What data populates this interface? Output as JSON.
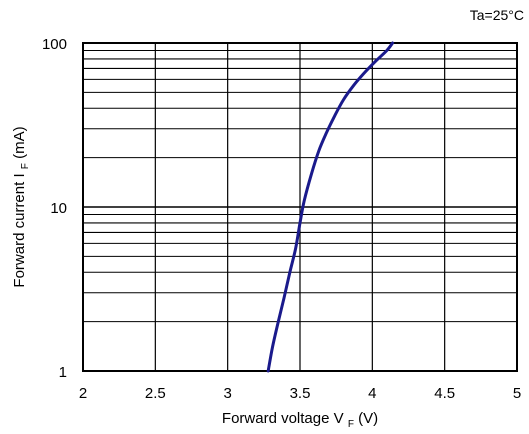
{
  "chart_data": {
    "type": "line",
    "title": "",
    "annotation": "Ta=25°C",
    "xlabel": {
      "prefix": "Forward voltage V",
      "subscript": "F",
      "suffix": " (V)"
    },
    "ylabel": {
      "prefix": "Forward current  I",
      "subscript": "F",
      "suffix": "  (mA)"
    },
    "xlim": [
      2,
      5
    ],
    "ylim": [
      1,
      100
    ],
    "yscale": "log",
    "grid": true,
    "x_ticks": [
      2,
      2.5,
      3,
      3.5,
      4,
      4.5,
      5
    ],
    "x_tick_labels": [
      "2",
      "2.5",
      "3",
      "3.5",
      "4",
      "4.5",
      "5"
    ],
    "y_ticks": [
      1,
      10,
      100
    ],
    "y_tick_labels": [
      "1",
      "10",
      "100"
    ],
    "series": [
      {
        "color": "#1a1a8c",
        "x": [
          3.28,
          3.31,
          3.35,
          3.39,
          3.43,
          3.47,
          3.5,
          3.53,
          3.58,
          3.63,
          3.68,
          3.74,
          3.8,
          3.87,
          3.94,
          4.02,
          4.1,
          4.14
        ],
        "y": [
          1,
          1.4,
          2,
          2.8,
          4,
          5.6,
          8,
          11,
          16,
          22,
          28,
          36,
          45,
          55,
          65,
          77,
          90,
          100
        ]
      }
    ]
  }
}
